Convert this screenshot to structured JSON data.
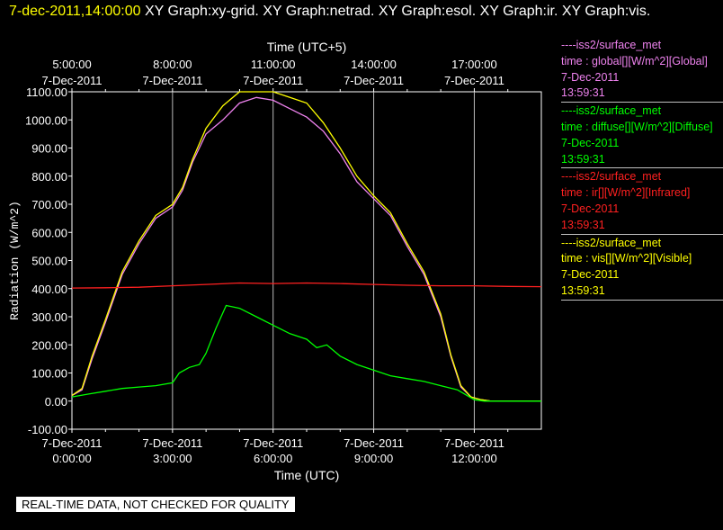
{
  "header": {
    "timestamp": "7-dec-2011,14:00:00",
    "titles": "XY Graph:xy-grid.  XY Graph:netrad.  XY Graph:esol.  XY Graph:ir.  XY Graph:vis."
  },
  "notice": "REAL-TIME DATA, NOT CHECKED FOR QUALITY",
  "legend": [
    {
      "lines": [
        "----iss2/surface_met",
        "time : global[][W/m^2][Global]",
        "7-Dec-2011",
        "13:59:31"
      ],
      "color": "#ee82ee"
    },
    {
      "lines": [
        "----iss2/surface_met",
        "time : diffuse[][W/m^2][Diffuse]",
        "7-Dec-2011",
        "13:59:31"
      ],
      "color": "#00ff00"
    },
    {
      "lines": [
        "----iss2/surface_met",
        "time : ir[][W/m^2][Infrared]",
        "7-Dec-2011",
        "13:59:31"
      ],
      "color": "#ff2020"
    },
    {
      "lines": [
        "----iss2/surface_met",
        "time : vis[][W/m^2][Visible]",
        "7-Dec-2011",
        "13:59:31"
      ],
      "color": "#ffff00"
    }
  ],
  "chart_data": {
    "type": "line",
    "xlabel": "Time (UTC)",
    "x2label": "Time (UTC+5)",
    "ylabel": "Radiation (W/m^2)",
    "xlim_hours": [
      0,
      14
    ],
    "ylim": [
      -100,
      1100
    ],
    "grid": true,
    "yticks": [
      {
        "value": 1100,
        "label": "1100.00"
      },
      {
        "value": 1000,
        "label": "1000.00"
      },
      {
        "value": 900,
        "label": "900.00"
      },
      {
        "value": 800,
        "label": "800.00"
      },
      {
        "value": 700,
        "label": "700.00"
      },
      {
        "value": 600,
        "label": "600.00"
      },
      {
        "value": 500,
        "label": "500.00"
      },
      {
        "value": 400,
        "label": "400.00"
      },
      {
        "value": 300,
        "label": "300.00"
      },
      {
        "value": 200,
        "label": "200.00"
      },
      {
        "value": 100,
        "label": "100.00"
      },
      {
        "value": 0,
        "label": "0.00"
      },
      {
        "value": -100,
        "label": "-100.00"
      }
    ],
    "xticks": [
      {
        "hour": 0,
        "date": "7-Dec-2011",
        "time": "0:00:00"
      },
      {
        "hour": 3,
        "date": "7-Dec-2011",
        "time": "3:00:00"
      },
      {
        "hour": 6,
        "date": "7-Dec-2011",
        "time": "6:00:00"
      },
      {
        "hour": 9,
        "date": "7-Dec-2011",
        "time": "9:00:00"
      },
      {
        "hour": 12,
        "date": "7-Dec-2011",
        "time": "12:00:00"
      }
    ],
    "x2ticks": [
      {
        "hour": 0,
        "date": "7-Dec-2011",
        "time": "5:00:00"
      },
      {
        "hour": 3,
        "date": "7-Dec-2011",
        "time": "8:00:00"
      },
      {
        "hour": 6,
        "date": "7-Dec-2011",
        "time": "11:00:00"
      },
      {
        "hour": 9,
        "date": "7-Dec-2011",
        "time": "14:00:00"
      },
      {
        "hour": 12,
        "date": "7-Dec-2011",
        "time": "17:00:00"
      }
    ],
    "series": [
      {
        "name": "Global",
        "color": "#ee82ee",
        "x": [
          0,
          0.3,
          0.6,
          1.0,
          1.5,
          2.0,
          2.5,
          3.0,
          3.3,
          3.6,
          4.0,
          4.5,
          5.0,
          5.5,
          6.0,
          6.5,
          7.0,
          7.5,
          8.0,
          8.5,
          9.0,
          9.5,
          10.0,
          10.5,
          11.0,
          11.3,
          11.6,
          11.9,
          12.2,
          12.5,
          13.0,
          13.5,
          14.0
        ],
        "y": [
          20,
          40,
          150,
          280,
          450,
          560,
          650,
          690,
          750,
          850,
          950,
          1000,
          1060,
          1080,
          1070,
          1040,
          1010,
          960,
          880,
          780,
          720,
          660,
          550,
          450,
          300,
          160,
          50,
          15,
          5,
          0,
          0,
          0,
          0
        ]
      },
      {
        "name": "Visible",
        "color": "#ffff00",
        "x": [
          0,
          0.3,
          0.6,
          1.0,
          1.5,
          2.0,
          2.5,
          3.0,
          3.3,
          3.6,
          4.0,
          4.5,
          5.0,
          5.5,
          6.0,
          6.5,
          7.0,
          7.5,
          8.0,
          8.5,
          9.0,
          9.5,
          10.0,
          10.5,
          11.0,
          11.3,
          11.6,
          11.9,
          12.2,
          12.5,
          13.0,
          13.5,
          14.0
        ],
        "y": [
          20,
          45,
          160,
          290,
          460,
          570,
          660,
          700,
          760,
          860,
          970,
          1050,
          1100,
          1100,
          1100,
          1080,
          1060,
          990,
          900,
          800,
          730,
          670,
          560,
          460,
          310,
          165,
          55,
          15,
          5,
          0,
          0,
          0,
          0
        ]
      },
      {
        "name": "Diffuse",
        "color": "#00ff00",
        "x": [
          0,
          0.5,
          1.0,
          1.5,
          2.0,
          2.5,
          3.0,
          3.2,
          3.5,
          3.8,
          4.0,
          4.3,
          4.6,
          5.0,
          5.5,
          6.0,
          6.5,
          7.0,
          7.3,
          7.6,
          8.0,
          8.5,
          9.0,
          9.5,
          10.0,
          10.5,
          11.0,
          11.5,
          12.0,
          12.3,
          13.0,
          14.0
        ],
        "y": [
          15,
          25,
          35,
          45,
          50,
          55,
          65,
          100,
          120,
          130,
          170,
          260,
          340,
          330,
          300,
          270,
          240,
          220,
          190,
          200,
          160,
          130,
          110,
          90,
          80,
          70,
          55,
          40,
          5,
          0,
          0,
          0
        ]
      },
      {
        "name": "Infrared",
        "color": "#ff2020",
        "x": [
          0,
          1,
          2,
          3,
          4,
          5,
          6,
          7,
          8,
          9,
          10,
          11,
          12,
          13,
          14
        ],
        "y": [
          402,
          403,
          405,
          410,
          415,
          420,
          418,
          420,
          418,
          415,
          412,
          410,
          410,
          408,
          407
        ]
      }
    ]
  }
}
